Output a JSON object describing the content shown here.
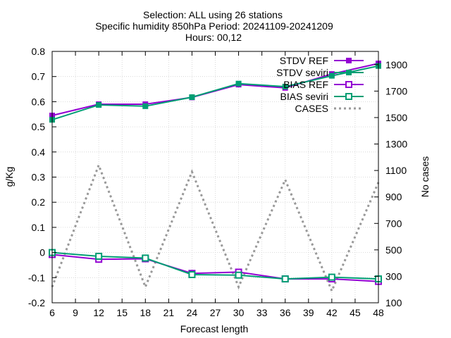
{
  "chart_data": {
    "type": "line",
    "title_lines": [
      "Selection: ALL using    26 stations",
      "Specific humidity 850hPa   Period: 20241109-20241209",
      "Hours: 00,12"
    ],
    "xlabel": "Forecast length",
    "ylabel": "g/Kg",
    "y2label": "No cases",
    "xlim": [
      6,
      48
    ],
    "ylim": [
      -0.2,
      0.8
    ],
    "y2lim": [
      100,
      2000
    ],
    "x_ticks": [
      6,
      9,
      12,
      15,
      18,
      21,
      24,
      27,
      30,
      33,
      36,
      39,
      42,
      45,
      48
    ],
    "y_ticks": [
      -0.2,
      -0.1,
      0,
      0.1,
      0.2,
      0.3,
      0.4,
      0.5,
      0.6,
      0.7,
      0.8
    ],
    "y_tick_labels": [
      "-0.2",
      "-0.1",
      "0",
      "0.1",
      "0.2",
      "0.3",
      "0.4",
      "0.5",
      "0.6",
      "0.7",
      "0.8"
    ],
    "y2_ticks": [
      100,
      300,
      500,
      700,
      900,
      1100,
      1300,
      1500,
      1700,
      1900
    ],
    "grid": true,
    "legend_position": "top-right",
    "x": [
      6,
      12,
      18,
      24,
      30,
      36,
      42,
      48
    ],
    "series": [
      {
        "name": "STDV REF",
        "axis": "y",
        "color": "#9400d3",
        "marker": "filled-square",
        "values": [
          0.545,
          0.59,
          0.59,
          0.617,
          0.668,
          0.655,
          0.71,
          0.752
        ]
      },
      {
        "name": "STDV seviri",
        "axis": "y",
        "color": "#009e73",
        "marker": "filled-square",
        "values": [
          0.528,
          0.587,
          0.582,
          0.618,
          0.672,
          0.66,
          0.703,
          0.742
        ]
      },
      {
        "name": "BIAS REF",
        "axis": "y",
        "color": "#9400d3",
        "marker": "open-square",
        "values": [
          -0.008,
          -0.027,
          -0.025,
          -0.083,
          -0.078,
          -0.105,
          -0.105,
          -0.115
        ]
      },
      {
        "name": "BIAS seviri",
        "axis": "y",
        "color": "#009e73",
        "marker": "open-square",
        "values": [
          0.0,
          -0.015,
          -0.022,
          -0.088,
          -0.09,
          -0.105,
          -0.098,
          -0.105
        ]
      },
      {
        "name": "CASES",
        "axis": "y2",
        "color": "#999999",
        "dashed": true,
        "marker": "none",
        "x": [
          6,
          12,
          18,
          24,
          30,
          36,
          42,
          48
        ],
        "values": [
          220,
          1140,
          220,
          1090,
          220,
          1030,
          190,
          1010
        ]
      }
    ]
  }
}
